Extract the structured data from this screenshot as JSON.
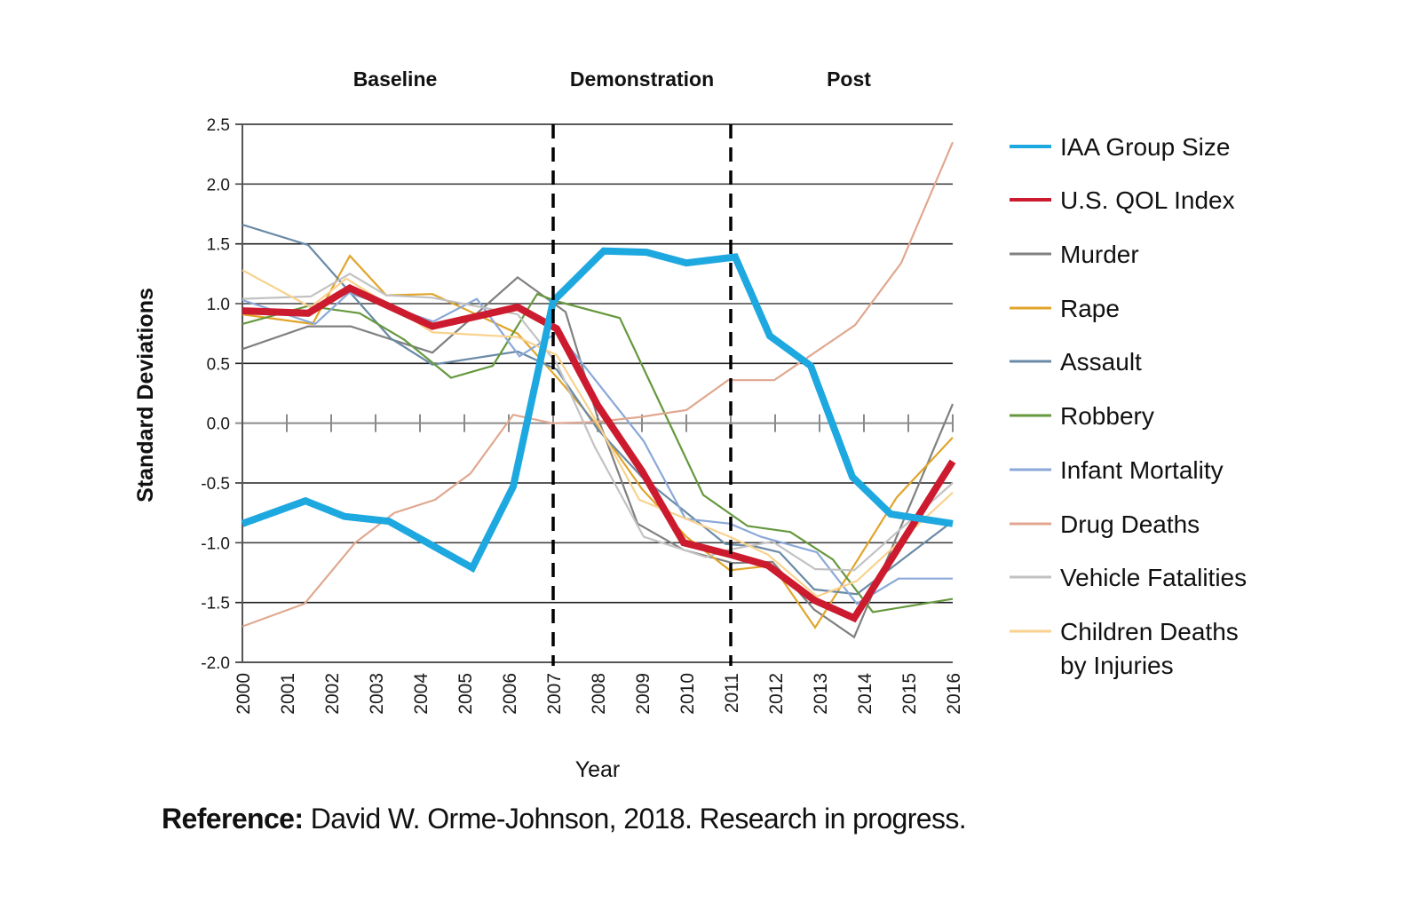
{
  "chart_data": {
    "type": "line",
    "title": "",
    "xlabel": "Year",
    "ylabel": "Standard Deviations",
    "xlim": [
      2000,
      2016
    ],
    "ylim": [
      -2.0,
      2.5
    ],
    "x_ticks": [
      "2000",
      "2001",
      "2002",
      "2003",
      "2004",
      "2005",
      "2006",
      "2007",
      "2008",
      "2009",
      "2010",
      "2011",
      "2012",
      "2013",
      "2014",
      "2015",
      "2016"
    ],
    "y_ticks": [
      "2.5",
      "2.0",
      "1.5",
      "1.0",
      "0.5",
      "0.0",
      "-0.5",
      "-1.0",
      "-1.5",
      "-2.0"
    ],
    "y_tick_values": [
      2.5,
      2.0,
      1.5,
      1.0,
      0.5,
      0.0,
      -0.5,
      -1.0,
      -1.5,
      -2.0
    ],
    "grid": "horizontal",
    "legend_position": "right",
    "phases": [
      {
        "label": "Baseline",
        "start": 2000,
        "end": 2007
      },
      {
        "label": "Demonstration",
        "start": 2007,
        "end": 2011
      },
      {
        "label": "Post",
        "start": 2011,
        "end": 2016
      }
    ],
    "phase_dividers": [
      2007,
      2011
    ],
    "series": [
      {
        "name": "IAA Group Size",
        "color": "#1ea8e0",
        "weight": "heavy",
        "x": [
          2000,
          2001.42,
          2002.3,
          2003.3,
          2005.18,
          2006.1,
          2007.0,
          2008.14,
          2009.1,
          2010.0,
          2011.1,
          2011.88,
          2012.8,
          2013.74,
          2014.6,
          2016
        ],
        "y": [
          -0.84,
          -0.65,
          -0.78,
          -0.82,
          -1.21,
          -0.53,
          1.02,
          1.44,
          1.43,
          1.34,
          1.39,
          0.73,
          0.48,
          -0.45,
          -0.76,
          -0.84
        ]
      },
      {
        "name": "U.S. QOL Index",
        "color": "#cc1a2e",
        "weight": "heavy",
        "x": [
          2000,
          2001.48,
          2002.42,
          2004.28,
          2006.2,
          2007.08,
          2008.0,
          2009.0,
          2009.94,
          2011.0,
          2011.84,
          2012.88,
          2013.78,
          2016
        ],
        "y": [
          0.94,
          0.92,
          1.13,
          0.81,
          0.97,
          0.79,
          0.15,
          -0.4,
          -1.0,
          -1.1,
          -1.19,
          -1.48,
          -1.63,
          -0.32
        ]
      },
      {
        "name": "Murder",
        "color": "#808080",
        "weight": "normal",
        "x": [
          2000,
          2001.48,
          2002.44,
          2004.28,
          2006.2,
          2007.28,
          2008.0,
          2008.9,
          2009.94,
          2011.04,
          2011.94,
          2012.88,
          2013.78,
          2016
        ],
        "y": [
          0.62,
          0.81,
          0.81,
          0.59,
          1.22,
          0.93,
          0.05,
          -0.84,
          -1.06,
          -1.17,
          -1.16,
          -1.56,
          -1.79,
          0.16
        ]
      },
      {
        "name": "Rape",
        "color": "#e0a52a",
        "weight": "normal",
        "x": [
          2000,
          2001.58,
          2002.42,
          2003.24,
          2004.28,
          2006.2,
          2007.14,
          2008.0,
          2009.0,
          2010.0,
          2010.98,
          2011.94,
          2012.9,
          2014.74,
          2016
        ],
        "y": [
          0.91,
          0.83,
          1.4,
          1.07,
          1.08,
          0.75,
          0.36,
          -0.02,
          -0.55,
          -0.95,
          -1.23,
          -1.19,
          -1.71,
          -0.62,
          -0.12
        ]
      },
      {
        "name": "Assault",
        "color": "#6a8aa6",
        "weight": "normal",
        "x": [
          2000,
          2001.48,
          2003.34,
          2004.28,
          2006.2,
          2007.08,
          2008.0,
          2009.0,
          2010.88,
          2011.54,
          2012.1,
          2012.88,
          2013.84,
          2016
        ],
        "y": [
          1.66,
          1.49,
          0.71,
          0.49,
          0.6,
          0.45,
          -0.05,
          -0.45,
          -1.01,
          -1.03,
          -1.08,
          -1.39,
          -1.43,
          -0.82
        ]
      },
      {
        "name": "Robbery",
        "color": "#66983e",
        "weight": "normal",
        "x": [
          2000,
          2001.48,
          2002.64,
          2003.64,
          2004.7,
          2005.64,
          2006.64,
          2007.08,
          2008.5,
          2010.38,
          2011.38,
          2012.34,
          2013.3,
          2014.2,
          2016
        ],
        "y": [
          0.83,
          0.98,
          0.92,
          0.7,
          0.38,
          0.48,
          1.08,
          1.02,
          0.88,
          -0.6,
          -0.86,
          -0.91,
          -1.14,
          -1.58,
          -1.47
        ]
      },
      {
        "name": "Infant Mortality",
        "color": "#8aa8d8",
        "weight": "normal",
        "x": [
          2000,
          2001.64,
          2002.4,
          2004.3,
          2005.28,
          2006.24,
          2007.1,
          2009.04,
          2009.98,
          2010.98,
          2011.68,
          2012.94,
          2013.84,
          2014.78,
          2016
        ],
        "y": [
          1.03,
          0.83,
          1.09,
          0.85,
          1.04,
          0.56,
          0.76,
          -0.15,
          -0.8,
          -0.84,
          -0.95,
          -1.08,
          -1.51,
          -1.3,
          -1.3
        ]
      },
      {
        "name": "Drug Deaths",
        "color": "#e0a890",
        "weight": "normal",
        "x": [
          2000,
          2001.4,
          2002.54,
          2003.42,
          2004.34,
          2005.14,
          2006.1,
          2006.98,
          2007.94,
          2008.94,
          2010.0,
          2010.94,
          2011.98,
          2013.8,
          2014.84,
          2016
        ],
        "y": [
          -1.7,
          -1.51,
          -1.0,
          -0.75,
          -0.64,
          -0.42,
          0.07,
          0.0,
          0.01,
          0.05,
          0.11,
          0.36,
          0.36,
          0.82,
          1.34,
          2.35
        ]
      },
      {
        "name": "Vehicle Fatalities",
        "color": "#c2c2c2",
        "weight": "normal",
        "x": [
          2000,
          2001.54,
          2002.42,
          2003.24,
          2004.28,
          2006.2,
          2007.08,
          2007.94,
          2009.04,
          2010.44,
          2010.94,
          2011.94,
          2012.9,
          2013.78,
          2016
        ],
        "y": [
          1.04,
          1.06,
          1.25,
          1.07,
          1.05,
          0.91,
          0.5,
          -0.2,
          -0.95,
          -1.12,
          -1.06,
          -0.99,
          -1.22,
          -1.23,
          -0.5
        ]
      },
      {
        "name": "Children Deaths by Injuries",
        "color": "#f8d28e",
        "weight": "normal",
        "x": [
          2000,
          2001.54,
          2002.34,
          2004.28,
          2006.2,
          2007.08,
          2008.0,
          2008.94,
          2010.98,
          2011.84,
          2012.94,
          2013.84,
          2016
        ],
        "y": [
          1.28,
          0.97,
          1.21,
          0.76,
          0.72,
          0.57,
          0.0,
          -0.64,
          -0.95,
          -1.1,
          -1.45,
          -1.32,
          -0.58
        ]
      }
    ]
  },
  "legend": [
    {
      "label_lines": [
        "IAA Group Size"
      ]
    },
    {
      "label_lines": [
        "U.S. QOL Index"
      ]
    },
    {
      "label_lines": [
        "Murder"
      ]
    },
    {
      "label_lines": [
        "Rape"
      ]
    },
    {
      "label_lines": [
        "Assault"
      ]
    },
    {
      "label_lines": [
        "Robbery"
      ]
    },
    {
      "label_lines": [
        "Infant Mortality"
      ]
    },
    {
      "label_lines": [
        "Drug Deaths"
      ]
    },
    {
      "label_lines": [
        "Vehicle Fatalities"
      ]
    },
    {
      "label_lines": [
        "Children Deaths",
        "by Injuries"
      ]
    }
  ],
  "reference": {
    "label": "Reference:",
    "text": " David W. Orme-Johnson, 2018. Research in progress."
  }
}
